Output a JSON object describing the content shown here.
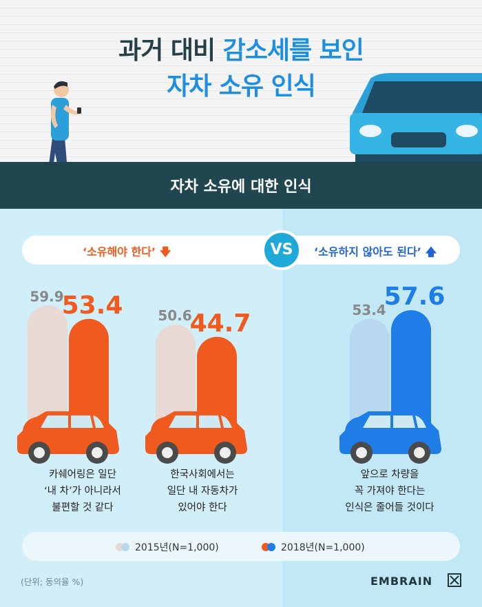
{
  "header": {
    "title_line1_a": "과거 대비",
    "title_line1_b": "감소세를 보인",
    "title_line2": "자차 소유 인식",
    "band_title": "자차 소유에 대한 인식"
  },
  "comparison": {
    "left_label": "‘소유해야 한다’",
    "left_arrow": "down-arrow-icon",
    "vs": "VS",
    "right_label": "‘소유하지 않아도 된다’",
    "right_arrow": "up-arrow-icon"
  },
  "chart_data": {
    "type": "bar",
    "categories": [
      "카쉐어링은 일단 ‘내 차’가 아니라서 불편할 것 같다",
      "한국사회에서는 일단 내 자동차가 있어야 한다",
      "앞으로 차량을 꼭 가져야 한다는 인식은 줄어들 것이다"
    ],
    "series": [
      {
        "name": "2015년(N=1,000)",
        "values": [
          59.9,
          50.6,
          53.4
        ]
      },
      {
        "name": "2018년(N=1,000)",
        "values": [
          53.4,
          44.7,
          57.6
        ]
      }
    ],
    "ylim": [
      0,
      70
    ],
    "colors": {
      "2015_left": "#e8d9d4",
      "2015_right": "#b9d8f0",
      "2018_left": "#f05a1e",
      "2018_right": "#1e7de6"
    },
    "unit": "(단위; 동의율 %)"
  },
  "captions": [
    [
      "카쉐어링은 일단",
      "‘내 차’가 아니라서",
      "불편할 것 같다"
    ],
    [
      "한국사회에서는",
      "일단 내 자동차가",
      "있어야 한다"
    ],
    [
      "앞으로 차량을",
      "꼭 가져야 한다는",
      "인식은 줄어들 것이다"
    ]
  ],
  "legend": {
    "item_2015": "2015년(N=1,000)",
    "item_2018": "2018년(N=1,000)"
  },
  "footer": {
    "unit": "(단위; 동의율 %)",
    "brand": "EMBRAIN"
  }
}
